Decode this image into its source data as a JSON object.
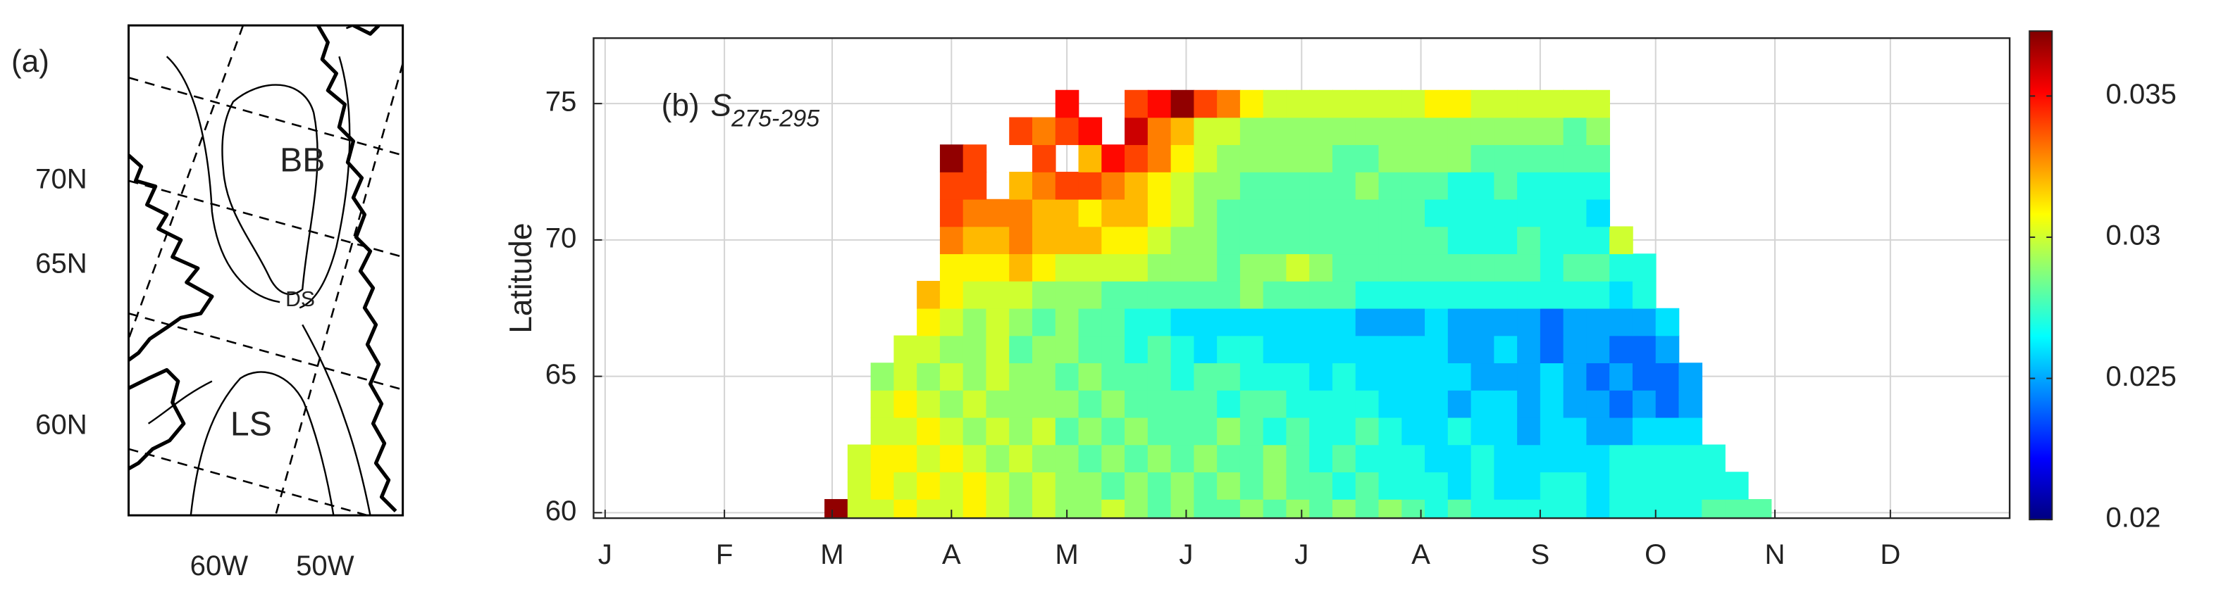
{
  "map": {
    "label": "(a)",
    "lat_labels": [
      "70N",
      "65N",
      "60N"
    ],
    "lon_labels": [
      "60W",
      "50W"
    ],
    "regions": [
      "BB",
      "DS",
      "LS"
    ]
  },
  "chart_data": {
    "type": "heatmap",
    "panel_label": "(b)",
    "symbol": "S",
    "subscript": "275-295",
    "ylabel": "Latitude",
    "colormap": "jet",
    "grid": true,
    "x": [
      60,
      66,
      72,
      78,
      84,
      90,
      96,
      102,
      108,
      114,
      120,
      126,
      132,
      138,
      144,
      150,
      156,
      162,
      168,
      174,
      180,
      186,
      192,
      198,
      204,
      210,
      216,
      222,
      228,
      234,
      240,
      246,
      252,
      258,
      264,
      270,
      276,
      282,
      288,
      294,
      300
    ],
    "y": [
      60,
      61,
      62,
      63,
      64,
      65,
      66,
      67,
      68,
      69,
      70,
      71,
      72,
      73,
      74,
      75
    ],
    "values": [
      [
        0.037,
        0.03,
        0.03,
        0.031,
        0.03,
        0.03,
        0.031,
        0.03,
        0.029,
        0.03,
        0.029,
        0.029,
        0.03,
        0.029,
        0.028,
        0.029,
        0.028,
        0.028,
        0.029,
        0.028,
        0.029,
        0.028,
        0.029,
        0.028,
        0.029,
        0.028,
        0.027,
        0.028,
        0.027,
        0.027,
        0.027,
        0.027,
        0.027,
        0.026,
        0.027,
        0.027,
        0.027,
        0.027,
        0.028,
        0.028,
        0.028
      ],
      [
        null,
        0.03,
        0.031,
        0.03,
        0.031,
        0.03,
        0.031,
        0.03,
        0.029,
        0.03,
        0.029,
        0.029,
        0.028,
        0.029,
        0.028,
        0.029,
        0.028,
        0.029,
        0.028,
        0.029,
        0.028,
        0.028,
        0.027,
        0.028,
        0.027,
        0.027,
        0.027,
        0.026,
        0.027,
        0.026,
        0.026,
        0.027,
        0.027,
        0.026,
        0.027,
        0.027,
        0.027,
        0.027,
        0.027,
        0.027,
        null
      ],
      [
        null,
        0.03,
        0.031,
        0.031,
        0.03,
        0.031,
        0.03,
        0.029,
        0.03,
        0.029,
        0.029,
        0.028,
        0.029,
        0.028,
        0.029,
        0.028,
        0.029,
        0.028,
        0.028,
        0.029,
        0.028,
        0.027,
        0.028,
        0.027,
        0.027,
        0.027,
        0.026,
        0.026,
        0.027,
        0.026,
        0.026,
        0.026,
        0.026,
        0.026,
        0.027,
        0.027,
        0.027,
        0.027,
        0.027,
        null,
        null
      ],
      [
        null,
        null,
        0.03,
        0.03,
        0.031,
        0.03,
        0.029,
        0.03,
        0.029,
        0.03,
        0.028,
        0.029,
        0.028,
        0.029,
        0.028,
        0.028,
        0.028,
        0.029,
        0.028,
        0.027,
        0.028,
        0.027,
        0.027,
        0.028,
        0.027,
        0.026,
        0.026,
        0.027,
        0.026,
        0.026,
        0.025,
        0.026,
        0.026,
        0.025,
        0.025,
        0.026,
        0.026,
        0.026,
        null,
        null,
        null
      ],
      [
        null,
        null,
        0.03,
        0.031,
        0.03,
        0.029,
        0.03,
        0.029,
        0.029,
        0.029,
        0.029,
        0.028,
        0.029,
        0.028,
        0.028,
        0.028,
        0.028,
        0.027,
        0.028,
        0.028,
        0.027,
        0.027,
        0.027,
        0.027,
        0.026,
        0.026,
        0.026,
        0.025,
        0.026,
        0.026,
        0.025,
        0.026,
        0.025,
        0.025,
        0.024,
        0.025,
        0.024,
        0.025,
        null,
        null,
        null
      ],
      [
        null,
        null,
        0.029,
        0.03,
        0.029,
        0.03,
        0.029,
        0.03,
        0.029,
        0.029,
        0.028,
        0.029,
        0.028,
        0.028,
        0.028,
        0.027,
        0.028,
        0.028,
        0.027,
        0.027,
        0.027,
        0.026,
        0.027,
        0.026,
        0.026,
        0.026,
        0.026,
        0.026,
        0.025,
        0.025,
        0.025,
        0.026,
        0.025,
        0.024,
        0.025,
        0.024,
        0.024,
        0.025,
        null,
        null,
        null
      ],
      [
        null,
        null,
        null,
        0.03,
        0.03,
        0.029,
        0.029,
        0.03,
        0.028,
        0.029,
        0.029,
        0.028,
        0.028,
        0.027,
        0.028,
        0.027,
        0.026,
        0.027,
        0.027,
        0.026,
        0.026,
        0.026,
        0.026,
        0.026,
        0.026,
        0.026,
        0.026,
        0.025,
        0.025,
        0.026,
        0.025,
        0.024,
        0.025,
        0.025,
        0.024,
        0.024,
        0.025,
        null,
        null,
        null,
        null
      ],
      [
        null,
        null,
        null,
        null,
        0.031,
        0.03,
        0.029,
        0.03,
        0.029,
        0.028,
        0.029,
        0.028,
        0.028,
        0.027,
        0.027,
        0.026,
        0.026,
        0.026,
        0.026,
        0.026,
        0.026,
        0.026,
        0.026,
        0.025,
        0.025,
        0.025,
        0.026,
        0.025,
        0.025,
        0.025,
        0.025,
        0.024,
        0.025,
        0.025,
        0.025,
        0.025,
        0.026,
        null,
        null,
        null,
        null
      ],
      [
        null,
        null,
        null,
        null,
        0.032,
        0.031,
        0.03,
        0.03,
        0.03,
        0.029,
        0.029,
        0.029,
        0.028,
        0.028,
        0.028,
        0.028,
        0.028,
        0.028,
        0.029,
        0.028,
        0.028,
        0.028,
        0.028,
        0.027,
        0.027,
        0.027,
        0.027,
        0.027,
        0.027,
        0.027,
        0.027,
        0.027,
        0.027,
        0.027,
        0.026,
        0.027,
        null,
        null,
        null,
        null,
        null
      ],
      [
        null,
        null,
        null,
        null,
        null,
        0.031,
        0.031,
        0.031,
        0.032,
        0.031,
        0.03,
        0.03,
        0.03,
        0.03,
        0.029,
        0.029,
        0.029,
        0.028,
        0.029,
        0.029,
        0.03,
        0.029,
        0.028,
        0.028,
        0.028,
        0.028,
        0.028,
        0.028,
        0.028,
        0.028,
        0.028,
        0.027,
        0.028,
        0.028,
        0.027,
        0.027,
        null,
        null,
        null,
        null,
        null
      ],
      [
        null,
        null,
        null,
        null,
        null,
        0.033,
        0.032,
        0.032,
        0.033,
        0.032,
        0.032,
        0.032,
        0.031,
        0.031,
        0.03,
        0.029,
        0.029,
        0.028,
        0.028,
        0.028,
        0.028,
        0.028,
        0.028,
        0.028,
        0.028,
        0.028,
        0.028,
        0.027,
        0.027,
        0.027,
        0.028,
        0.027,
        0.027,
        0.027,
        0.03,
        null,
        null,
        null,
        null,
        null,
        null
      ],
      [
        null,
        null,
        null,
        null,
        null,
        0.034,
        0.033,
        0.033,
        0.033,
        0.032,
        0.032,
        0.031,
        0.032,
        0.032,
        0.031,
        0.03,
        0.029,
        0.028,
        0.028,
        0.028,
        0.028,
        0.028,
        0.028,
        0.028,
        0.028,
        0.028,
        0.027,
        0.027,
        0.027,
        0.027,
        0.027,
        0.027,
        0.027,
        0.026,
        null,
        null,
        null,
        null,
        null,
        null,
        null
      ],
      [
        null,
        null,
        null,
        null,
        null,
        0.034,
        0.034,
        null,
        0.032,
        0.033,
        0.034,
        0.034,
        0.033,
        0.032,
        0.031,
        0.03,
        0.029,
        0.029,
        0.028,
        0.028,
        0.028,
        0.028,
        0.028,
        0.029,
        0.028,
        0.028,
        0.028,
        0.027,
        0.027,
        0.028,
        0.027,
        0.027,
        0.027,
        0.027,
        null,
        null,
        null,
        null,
        null,
        null,
        null
      ],
      [
        null,
        null,
        null,
        null,
        null,
        0.037,
        0.034,
        null,
        null,
        0.034,
        null,
        0.032,
        0.035,
        0.034,
        0.033,
        0.031,
        0.03,
        0.029,
        0.029,
        0.029,
        0.029,
        0.029,
        0.028,
        0.028,
        0.029,
        0.029,
        0.029,
        0.029,
        0.028,
        0.028,
        0.028,
        0.028,
        0.028,
        0.028,
        null,
        null,
        null,
        null,
        null,
        null,
        null
      ],
      [
        null,
        null,
        null,
        null,
        null,
        null,
        null,
        null,
        0.034,
        0.033,
        0.034,
        0.035,
        null,
        0.036,
        0.033,
        0.032,
        0.03,
        0.03,
        0.029,
        0.029,
        0.029,
        0.029,
        0.029,
        0.029,
        0.029,
        0.029,
        0.029,
        0.029,
        0.029,
        0.029,
        0.029,
        0.029,
        0.028,
        0.029,
        null,
        null,
        null,
        null,
        null,
        null,
        null
      ],
      [
        null,
        null,
        null,
        null,
        null,
        null,
        null,
        null,
        null,
        null,
        0.035,
        null,
        null,
        0.034,
        0.035,
        0.037,
        0.034,
        0.033,
        0.031,
        0.03,
        0.03,
        0.03,
        0.03,
        0.03,
        0.03,
        0.03,
        0.031,
        0.031,
        0.03,
        0.03,
        0.03,
        0.03,
        0.03,
        0.03,
        null,
        null,
        null,
        null,
        null,
        null,
        null
      ]
    ],
    "xlim": [
      -3,
      365
    ],
    "ylim": [
      59.8,
      77.4
    ],
    "xticks": [
      {
        "value": 0,
        "label": "J"
      },
      {
        "value": 31,
        "label": "F"
      },
      {
        "value": 59,
        "label": "M"
      },
      {
        "value": 90,
        "label": "A"
      },
      {
        "value": 120,
        "label": "M"
      },
      {
        "value": 151,
        "label": "J"
      },
      {
        "value": 181,
        "label": "J"
      },
      {
        "value": 212,
        "label": "A"
      },
      {
        "value": 243,
        "label": "S"
      },
      {
        "value": 273,
        "label": "O"
      },
      {
        "value": 304,
        "label": "N"
      },
      {
        "value": 334,
        "label": "D"
      }
    ],
    "yticks": [
      60,
      65,
      70,
      75
    ],
    "clim": [
      0.02,
      0.0373
    ],
    "cticks": [
      0.02,
      0.025,
      0.03,
      0.035
    ]
  }
}
